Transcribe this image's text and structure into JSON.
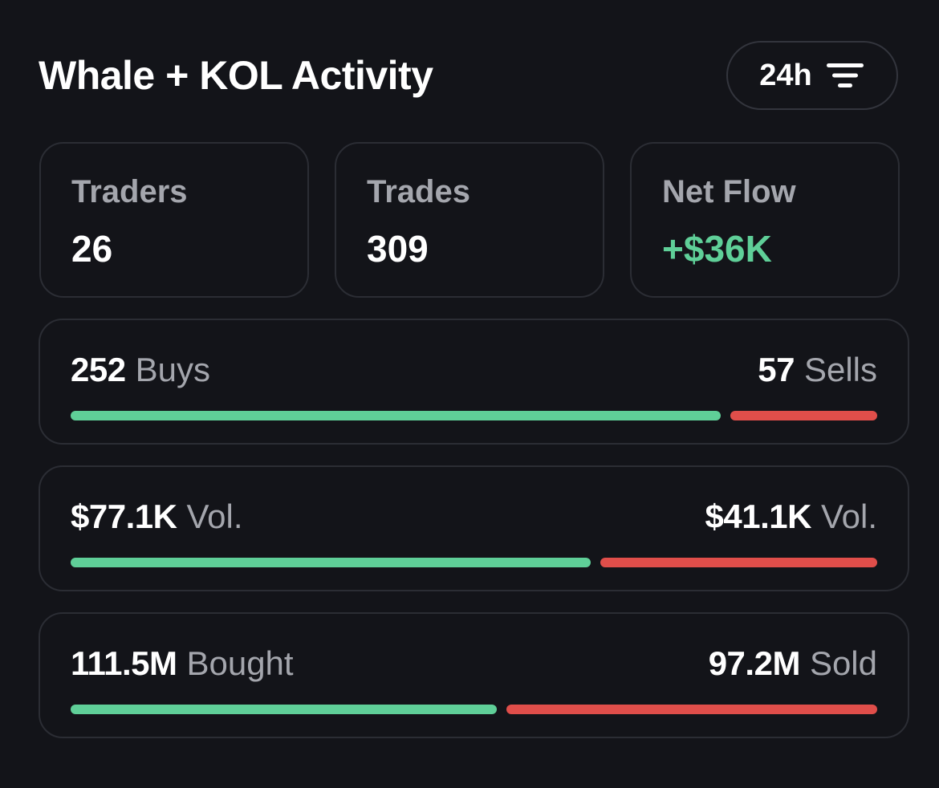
{
  "header": {
    "title": "Whale + KOL Activity",
    "range_label": "24h",
    "filter_icon": "filter-lines-icon"
  },
  "stats": [
    {
      "label": "Traders",
      "value": "26"
    },
    {
      "label": "Trades",
      "value": "309"
    },
    {
      "label": "Net Flow",
      "value": "+$36K"
    }
  ],
  "splits": [
    {
      "left_value": "252",
      "left_unit": "Buys",
      "right_value": "57",
      "right_unit": "Sells",
      "buy_fraction": 0.8155
    },
    {
      "left_value": "$77.1K",
      "left_unit": "Vol.",
      "right_value": "$41.1K",
      "right_unit": "Vol.",
      "buy_fraction": 0.6523
    },
    {
      "left_value": "111.5M",
      "left_unit": "Bought",
      "right_value": "97.2M",
      "right_unit": "Sold",
      "buy_fraction": 0.5343
    }
  ],
  "colors": {
    "background": "#131419",
    "buy": "#5fcf98",
    "sell": "#e04e4a",
    "muted_text": "#a4a6ad",
    "border": "#2b2d34"
  }
}
